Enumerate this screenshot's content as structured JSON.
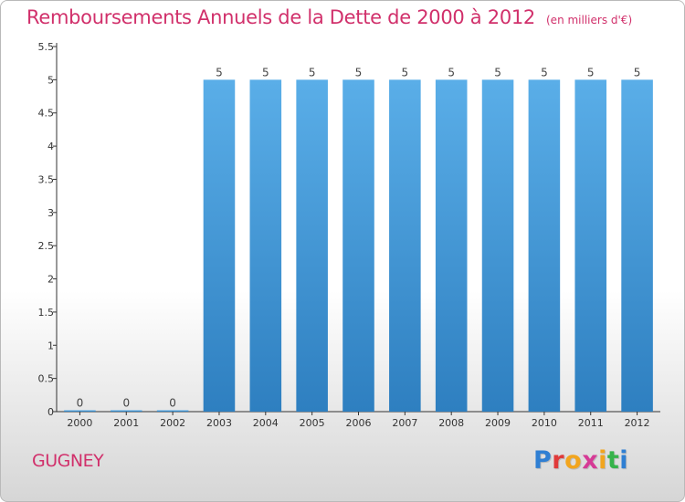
{
  "header": {
    "title": "Remboursements Annuels de la Dette de 2000 à 2012",
    "unit": "(en milliers d'€)"
  },
  "footer": {
    "commune": "GUGNEY",
    "logo_letters": [
      "P",
      "r",
      "o",
      "x",
      "i",
      "t",
      "i"
    ],
    "logo_colors": [
      "#2f7fd3",
      "#e03a3a",
      "#f2a51e",
      "#d63a96",
      "#f2a51e",
      "#36b34a",
      "#2f7fd3"
    ]
  },
  "colors": {
    "accent": "#d1306b",
    "bar_top": "#5aaee8",
    "bar_bottom": "#2e7fc0"
  },
  "chart_data": {
    "type": "bar",
    "categories": [
      "2000",
      "2001",
      "2002",
      "2003",
      "2004",
      "2005",
      "2006",
      "2007",
      "2008",
      "2009",
      "2010",
      "2011",
      "2012"
    ],
    "values": [
      0,
      0,
      0,
      5,
      5,
      5,
      5,
      5,
      5,
      5,
      5,
      5,
      5
    ],
    "data_labels": [
      "0",
      "0",
      "0",
      "5",
      "5",
      "5",
      "5",
      "5",
      "5",
      "5",
      "5",
      "5",
      "5"
    ],
    "title": "Remboursements Annuels de la Dette de 2000 à 2012",
    "xlabel": "",
    "ylabel": "",
    "ylim": [
      0,
      5.5
    ],
    "yticks": [
      0,
      0.5,
      1,
      1.5,
      2,
      2.5,
      3,
      3.5,
      4,
      4.5,
      5,
      5.5
    ],
    "ytick_labels": [
      "0",
      "0.5",
      "1",
      "1.5",
      "2",
      "2.5",
      "3",
      "3.5",
      "4",
      "4.5",
      "5",
      "5.5"
    ],
    "grid": false,
    "legend": "none"
  }
}
